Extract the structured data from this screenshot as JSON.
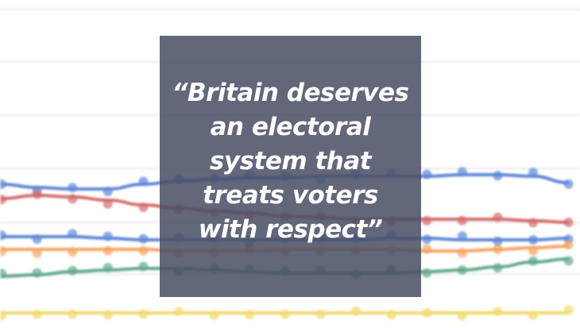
{
  "quote": {
    "text": "“Britain deserves an electoral system that treats voters with respect”"
  },
  "colors": {
    "box": "#484e64",
    "series": [
      "#5b86d6",
      "#d46a6a",
      "#5b86d6",
      "#f6a25e",
      "#5fa88a",
      "#f2d96a"
    ],
    "gridline": "#e6e8f2"
  }
}
